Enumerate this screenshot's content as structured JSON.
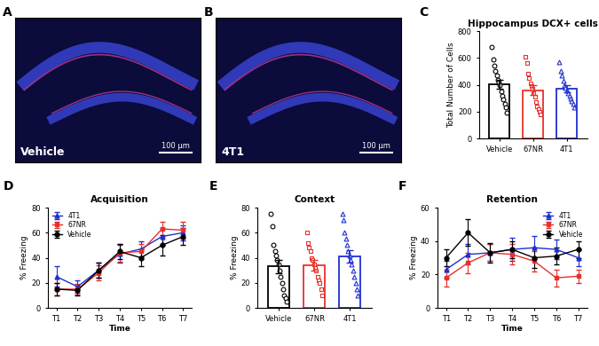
{
  "chart_data": [
    {
      "panel": "A",
      "type": "image",
      "label": "Vehicle",
      "scale_bar": "100 μm"
    },
    {
      "panel": "B",
      "type": "image",
      "label": "4T1",
      "scale_bar": "100 μm"
    },
    {
      "panel": "C",
      "type": "bar",
      "title": "Hippocampus DCX+ cells",
      "y_label": "Total Number of Cells",
      "categories": [
        "Vehicle",
        "67NR",
        "4T1"
      ],
      "values": [
        405,
        360,
        372
      ],
      "errors": [
        35,
        38,
        28
      ],
      "colors": [
        "#000000",
        "#e8302a",
        "#1f2fd0"
      ],
      "points": [
        {
          "marker": "circle",
          "values": [
            680,
            590,
            540,
            500,
            470,
            440,
            420,
            400,
            350,
            320,
            290,
            260,
            230,
            190
          ]
        },
        {
          "marker": "square",
          "values": [
            610,
            560,
            480,
            450,
            410,
            390,
            370,
            340,
            310,
            270,
            240,
            220,
            200,
            180
          ]
        },
        {
          "marker": "triangle",
          "values": [
            570,
            500,
            470,
            430,
            400,
            380,
            360,
            340,
            320,
            300,
            280,
            260,
            230
          ]
        }
      ],
      "ylim": [
        0,
        800
      ],
      "yticks": [
        0,
        200,
        400,
        600,
        800
      ]
    },
    {
      "panel": "D",
      "type": "line",
      "title": "Acquisition",
      "x_label": "Time",
      "y_label": "% Freezing",
      "categories": [
        "T1",
        "T2",
        "T3",
        "T4",
        "T5",
        "T6",
        "T7"
      ],
      "series": [
        {
          "name": "4T1",
          "color": "#1f2fd0",
          "marker": "triangle",
          "values": [
            25,
            17,
            30,
            43,
            47,
            57,
            60
          ],
          "errors": [
            8,
            5,
            6,
            7,
            6,
            7,
            6
          ]
        },
        {
          "name": "67NR",
          "color": "#e8302a",
          "marker": "square",
          "values": [
            15,
            15,
            28,
            44,
            45,
            63,
            62
          ],
          "errors": [
            5,
            4,
            6,
            7,
            6,
            6,
            7
          ]
        },
        {
          "name": "Vehicle",
          "color": "#000000",
          "marker": "circle",
          "values": [
            15,
            14,
            30,
            45,
            40,
            50,
            57
          ],
          "errors": [
            5,
            4,
            6,
            6,
            7,
            8,
            7
          ]
        }
      ],
      "ylim": [
        0,
        80
      ],
      "yticks": [
        0,
        20,
        40,
        60,
        80
      ],
      "legend": "upper left"
    },
    {
      "panel": "E",
      "type": "bar",
      "title": "Context",
      "y_label": "% Freezing",
      "categories": [
        "Vehicle",
        "67NR",
        "4T1"
      ],
      "values": [
        33,
        34,
        41
      ],
      "errors": [
        5,
        4,
        5
      ],
      "colors": [
        "#000000",
        "#e8302a",
        "#1f2fd0"
      ],
      "points": [
        {
          "marker": "circle",
          "values": [
            75,
            65,
            50,
            45,
            42,
            38,
            35,
            30,
            25,
            20,
            15,
            10,
            8,
            5
          ]
        },
        {
          "marker": "square",
          "values": [
            60,
            52,
            48,
            45,
            40,
            38,
            35,
            32,
            30,
            25,
            22,
            20,
            15,
            10
          ]
        },
        {
          "marker": "triangle",
          "values": [
            75,
            70,
            60,
            55,
            50,
            45,
            42,
            38,
            35,
            30,
            25,
            20,
            15,
            10
          ]
        }
      ],
      "ylim": [
        0,
        80
      ],
      "yticks": [
        0,
        20,
        40,
        60,
        80
      ]
    },
    {
      "panel": "F",
      "type": "line",
      "title": "Retention",
      "x_label": "Time",
      "y_label": "% Freezing",
      "categories": [
        "T1",
        "T2",
        "T3",
        "T4",
        "T5",
        "T6",
        "T7"
      ],
      "series": [
        {
          "name": "4T1",
          "color": "#1f2fd0",
          "marker": "triangle",
          "values": [
            23,
            32,
            33,
            35,
            36,
            35,
            30
          ],
          "errors": [
            5,
            6,
            5,
            7,
            7,
            6,
            5
          ]
        },
        {
          "name": "67NR",
          "color": "#e8302a",
          "marker": "square",
          "values": [
            18,
            27,
            33,
            32,
            28,
            18,
            19
          ],
          "errors": [
            5,
            6,
            5,
            6,
            6,
            5,
            4
          ]
        },
        {
          "name": "Vehicle",
          "color": "#000000",
          "marker": "circle",
          "values": [
            30,
            45,
            33,
            35,
            30,
            31,
            35
          ],
          "errors": [
            5,
            8,
            6,
            5,
            6,
            5,
            5
          ]
        }
      ],
      "ylim": [
        0,
        60
      ],
      "yticks": [
        0,
        20,
        40,
        60
      ],
      "legend": "upper right"
    }
  ]
}
